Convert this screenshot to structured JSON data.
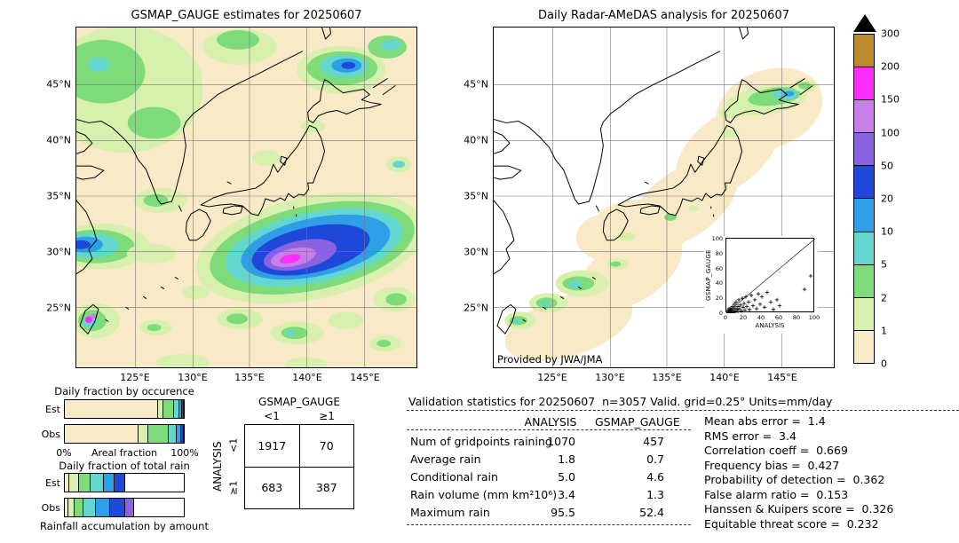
{
  "maps": {
    "left": {
      "title": "GSMAP_GAUGE estimates for 20250607",
      "lat_labels": [
        "45°N",
        "40°N",
        "35°N",
        "30°N",
        "25°N"
      ],
      "lon_labels": [
        "125°E",
        "130°E",
        "135°E",
        "140°E",
        "145°E"
      ]
    },
    "right": {
      "title": "Daily Radar-AMeDAS analysis for 20250607",
      "credit": "Provided by JWA/JMA",
      "lat_labels": [
        "45°N",
        "40°N",
        "35°N",
        "30°N",
        "25°N"
      ],
      "lon_labels": [
        "125°E",
        "130°E",
        "135°E",
        "140°E",
        "145°E"
      ]
    }
  },
  "colorbar": {
    "tick_labels": [
      "300",
      "200",
      "150",
      "100",
      "50",
      "20",
      "10",
      "5",
      "2",
      "1",
      "0"
    ],
    "segment_colors_top_to_bottom": [
      "#bd8a2e",
      "#fb2efb",
      "#c97fe8",
      "#8a63e0",
      "#1f48d8",
      "#2e9fe6",
      "#63d6cf",
      "#7ddb79",
      "#d7f0ad",
      "#f8e9c7"
    ],
    "overflow_color": "#000000"
  },
  "chart_data": [
    {
      "type": "bar",
      "title": "Daily fraction by occurence",
      "xlabel": "Areal fraction",
      "x_ticks": [
        "0%",
        "100%"
      ],
      "rows": [
        {
          "label": "Est",
          "segments": [
            {
              "color": "#f8e9c7",
              "pct": 78
            },
            {
              "color": "#d7f0ad",
              "pct": 5
            },
            {
              "color": "#7ddb79",
              "pct": 9
            },
            {
              "color": "#63d6cf",
              "pct": 4
            },
            {
              "color": "#2e9fe6",
              "pct": 2.5
            },
            {
              "color": "#1f48d8",
              "pct": 1.5
            }
          ]
        },
        {
          "label": "Obs",
          "segments": [
            {
              "color": "#f8e9c7",
              "pct": 62
            },
            {
              "color": "#d7f0ad",
              "pct": 8
            },
            {
              "color": "#7ddb79",
              "pct": 17
            },
            {
              "color": "#63d6cf",
              "pct": 7
            },
            {
              "color": "#2e9fe6",
              "pct": 4
            },
            {
              "color": "#1f48d8",
              "pct": 2
            }
          ]
        }
      ]
    },
    {
      "type": "bar",
      "title": "Daily fraction of total rain",
      "caption": "Rainfall accumulation by amount",
      "rows": [
        {
          "label": "Est",
          "segments": [
            {
              "color": "#f8e9c7",
              "pct": 4
            },
            {
              "color": "#d7f0ad",
              "pct": 8
            },
            {
              "color": "#7ddb79",
              "pct": 10
            },
            {
              "color": "#63d6cf",
              "pct": 11
            },
            {
              "color": "#2e9fe6",
              "pct": 9
            },
            {
              "color": "#1f48d8",
              "pct": 9
            }
          ]
        },
        {
          "label": "Obs",
          "segments": [
            {
              "color": "#f8e9c7",
              "pct": 3
            },
            {
              "color": "#d7f0ad",
              "pct": 5
            },
            {
              "color": "#7ddb79",
              "pct": 8
            },
            {
              "color": "#63d6cf",
              "pct": 10
            },
            {
              "color": "#2e9fe6",
              "pct": 12
            },
            {
              "color": "#1f48d8",
              "pct": 13
            },
            {
              "color": "#8a63e0",
              "pct": 7
            }
          ]
        }
      ]
    },
    {
      "type": "scatter",
      "xlabel": "ANALYSIS",
      "ylabel": "GSMAP_GAUGE",
      "xlim": [
        0,
        100
      ],
      "ylim": [
        0,
        100
      ],
      "ticks": [
        0,
        20,
        40,
        60,
        80,
        100
      ],
      "ref_line": [
        [
          0,
          0
        ],
        [
          100,
          100
        ]
      ],
      "points": [
        [
          1,
          0
        ],
        [
          1,
          2
        ],
        [
          2,
          1
        ],
        [
          2,
          4
        ],
        [
          3,
          0
        ],
        [
          3,
          2
        ],
        [
          3,
          6
        ],
        [
          4,
          1
        ],
        [
          4,
          3
        ],
        [
          5,
          2
        ],
        [
          5,
          7
        ],
        [
          6,
          0
        ],
        [
          6,
          4
        ],
        [
          7,
          2
        ],
        [
          7,
          9
        ],
        [
          8,
          5
        ],
        [
          9,
          1
        ],
        [
          9,
          12
        ],
        [
          10,
          3
        ],
        [
          10,
          7
        ],
        [
          11,
          15
        ],
        [
          12,
          5
        ],
        [
          13,
          2
        ],
        [
          13,
          9
        ],
        [
          14,
          18
        ],
        [
          15,
          6
        ],
        [
          16,
          11
        ],
        [
          17,
          3
        ],
        [
          18,
          20
        ],
        [
          19,
          8
        ],
        [
          20,
          13
        ],
        [
          21,
          4
        ],
        [
          22,
          22
        ],
        [
          23,
          9
        ],
        [
          25,
          15
        ],
        [
          26,
          5
        ],
        [
          28,
          24
        ],
        [
          30,
          10
        ],
        [
          32,
          18
        ],
        [
          34,
          6
        ],
        [
          36,
          26
        ],
        [
          38,
          12
        ],
        [
          40,
          22
        ],
        [
          43,
          8
        ],
        [
          46,
          28
        ],
        [
          50,
          15
        ],
        [
          53,
          5
        ],
        [
          57,
          18
        ],
        [
          60,
          10
        ],
        [
          88,
          32
        ],
        [
          95,
          50
        ]
      ]
    },
    {
      "type": "table",
      "name": "contingency",
      "col_title": "GSMAP_GAUGE",
      "row_title": "ANALYSIS",
      "col_labels": [
        "<1",
        "≥1"
      ],
      "row_labels": [
        "<1",
        "≥1"
      ],
      "values": [
        [
          "1917",
          "70"
        ],
        [
          "683",
          "387"
        ]
      ]
    },
    {
      "type": "table",
      "name": "validation",
      "header": "Validation statistics for 20250607  n=3057 Valid. grid=0.25° Units=mm/day",
      "col_headers": [
        "ANALYSIS",
        "GSMAP_GAUGE"
      ],
      "rows": [
        {
          "label": "Num of gridpoints raining",
          "analysis": "1070",
          "gsmap": "457"
        },
        {
          "label": "Average rain",
          "analysis": "1.8",
          "gsmap": "0.7"
        },
        {
          "label": "Conditional rain",
          "analysis": "5.0",
          "gsmap": "4.6"
        },
        {
          "label": "Rain volume (mm km²10⁶)",
          "analysis": "3.4",
          "gsmap": "1.3"
        },
        {
          "label": "Maximum rain",
          "analysis": "95.5",
          "gsmap": "52.4"
        }
      ],
      "stats": [
        {
          "label": "Mean abs error",
          "value": "1.4"
        },
        {
          "label": "RMS error",
          "value": "3.4"
        },
        {
          "label": "Correlation coeff",
          "value": "0.669"
        },
        {
          "label": "Frequency bias",
          "value": "0.427"
        },
        {
          "label": "Probability of detection",
          "value": "0.362"
        },
        {
          "label": "False alarm ratio",
          "value": "0.153"
        },
        {
          "label": "Hanssen & Kuipers score",
          "value": "0.326"
        },
        {
          "label": "Equitable threat score",
          "value": "0.232"
        }
      ]
    }
  ]
}
